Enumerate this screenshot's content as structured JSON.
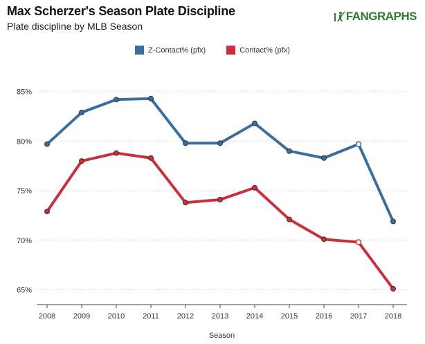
{
  "header": {
    "title": "Max Scherzer's Season Plate Discipline",
    "subtitle": "Plate discipline by MLB Season",
    "logo_text": "FANGRAPHS"
  },
  "chart_data": {
    "type": "line",
    "title": "Max Scherzer's Season Plate Discipline",
    "subtitle": "Plate discipline by MLB Season",
    "xlabel": "Season",
    "ylabel": "",
    "categories": [
      "2008",
      "2009",
      "2010",
      "2011",
      "2012",
      "2013",
      "2014",
      "2015",
      "2016",
      "2017",
      "2018"
    ],
    "ylim": [
      63.5,
      87
    ],
    "yticks": [
      65,
      70,
      75,
      80,
      85
    ],
    "ytick_labels": [
      "65%",
      "70%",
      "75%",
      "80%",
      "85%"
    ],
    "grid": "horizontal",
    "legend_position": "top-center",
    "series": [
      {
        "name": "Z-Contact% (pfx)",
        "color": "#3b6ea0",
        "values": [
          79.7,
          82.9,
          84.2,
          84.3,
          79.8,
          79.8,
          81.8,
          79.0,
          78.3,
          79.7,
          71.9
        ],
        "hollow_points": [
          9
        ]
      },
      {
        "name": "Contact% (pfx)",
        "color": "#cc2e3b",
        "values": [
          72.9,
          78.0,
          78.8,
          78.3,
          73.8,
          74.1,
          75.3,
          72.1,
          70.1,
          69.8,
          65.1
        ],
        "hollow_points": [
          9
        ]
      }
    ]
  }
}
